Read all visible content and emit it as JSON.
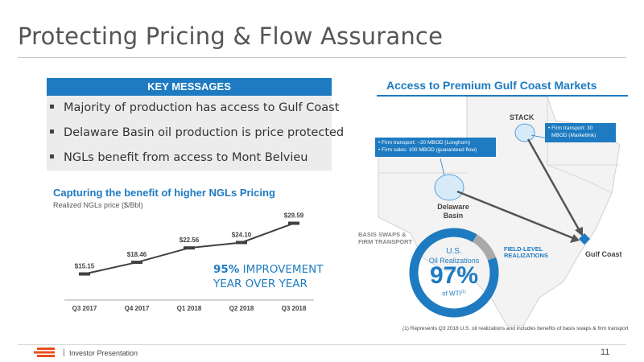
{
  "page": {
    "title": "Protecting Pricing & Flow Assurance",
    "footer_label": "Investor Presentation",
    "footer_separator": "|",
    "page_number": "11"
  },
  "key_messages": {
    "header": "KEY MESSAGES",
    "items": [
      "Majority of production has access to Gulf Coast",
      "Delaware Basin oil production is price protected",
      "NGLs benefit from access to Mont Belvieu"
    ]
  },
  "ngl_section": {
    "title": "Capturing the benefit of higher NGLs Pricing",
    "subtitle": "Realized NGLs price ($/Bbl)",
    "improvement_value": "95%",
    "improvement_text_line1": " IMPROVEMENT",
    "improvement_text_line2": "YEAR OVER YEAR"
  },
  "chart_data": {
    "type": "line",
    "title": "Capturing the benefit of higher NGLs Pricing",
    "ylabel": "Realized NGLs price ($/Bbl)",
    "xlabel": "",
    "categories": [
      "Q3 2017",
      "Q4 2017",
      "Q1 2018",
      "Q2 2018",
      "Q3 2018"
    ],
    "values": [
      15.15,
      18.46,
      22.56,
      24.1,
      29.59
    ],
    "labels": [
      "$15.15",
      "$18.46",
      "$22.56",
      "$24.10",
      "$29.59"
    ],
    "ylim": [
      10,
      32
    ],
    "grid": false,
    "color": "#404040"
  },
  "map": {
    "title": "Access to Premium Gulf Coast Markets",
    "stack_label": "STACK",
    "delaware_label_line1": "Delaware",
    "delaware_label_line2": "Basin",
    "gulf_label": "Gulf Coast",
    "callout_delaware": [
      "• Firm transport: ~20 MBOD (Longhorn)",
      "• Firm sales: 100 MBOD (guaranteed flow)"
    ],
    "callout_stack": [
      "• Firm transport: 30",
      "MBOD (Marketlink)"
    ],
    "donut": {
      "header": "U.S.",
      "sub": "Oil Realizations",
      "value": "97%",
      "suffix": "of WTI",
      "superscript": "(1)",
      "fraction": 0.97
    },
    "basis_label_line1": "BASIS SWAPS &",
    "basis_label_line2": "FIRM TRANSPORT",
    "field_label_line1": "FIELD-LEVEL",
    "field_label_line2": "REALIZATIONS",
    "footnote": "(1) Represents Q3 2018 U.S. oil realizations and includes benefits of basis swaps & firm transport"
  },
  "colors": {
    "accent": "#1e7bc1",
    "brand": "#e8501e",
    "map_fill": "#f2f2f2"
  }
}
